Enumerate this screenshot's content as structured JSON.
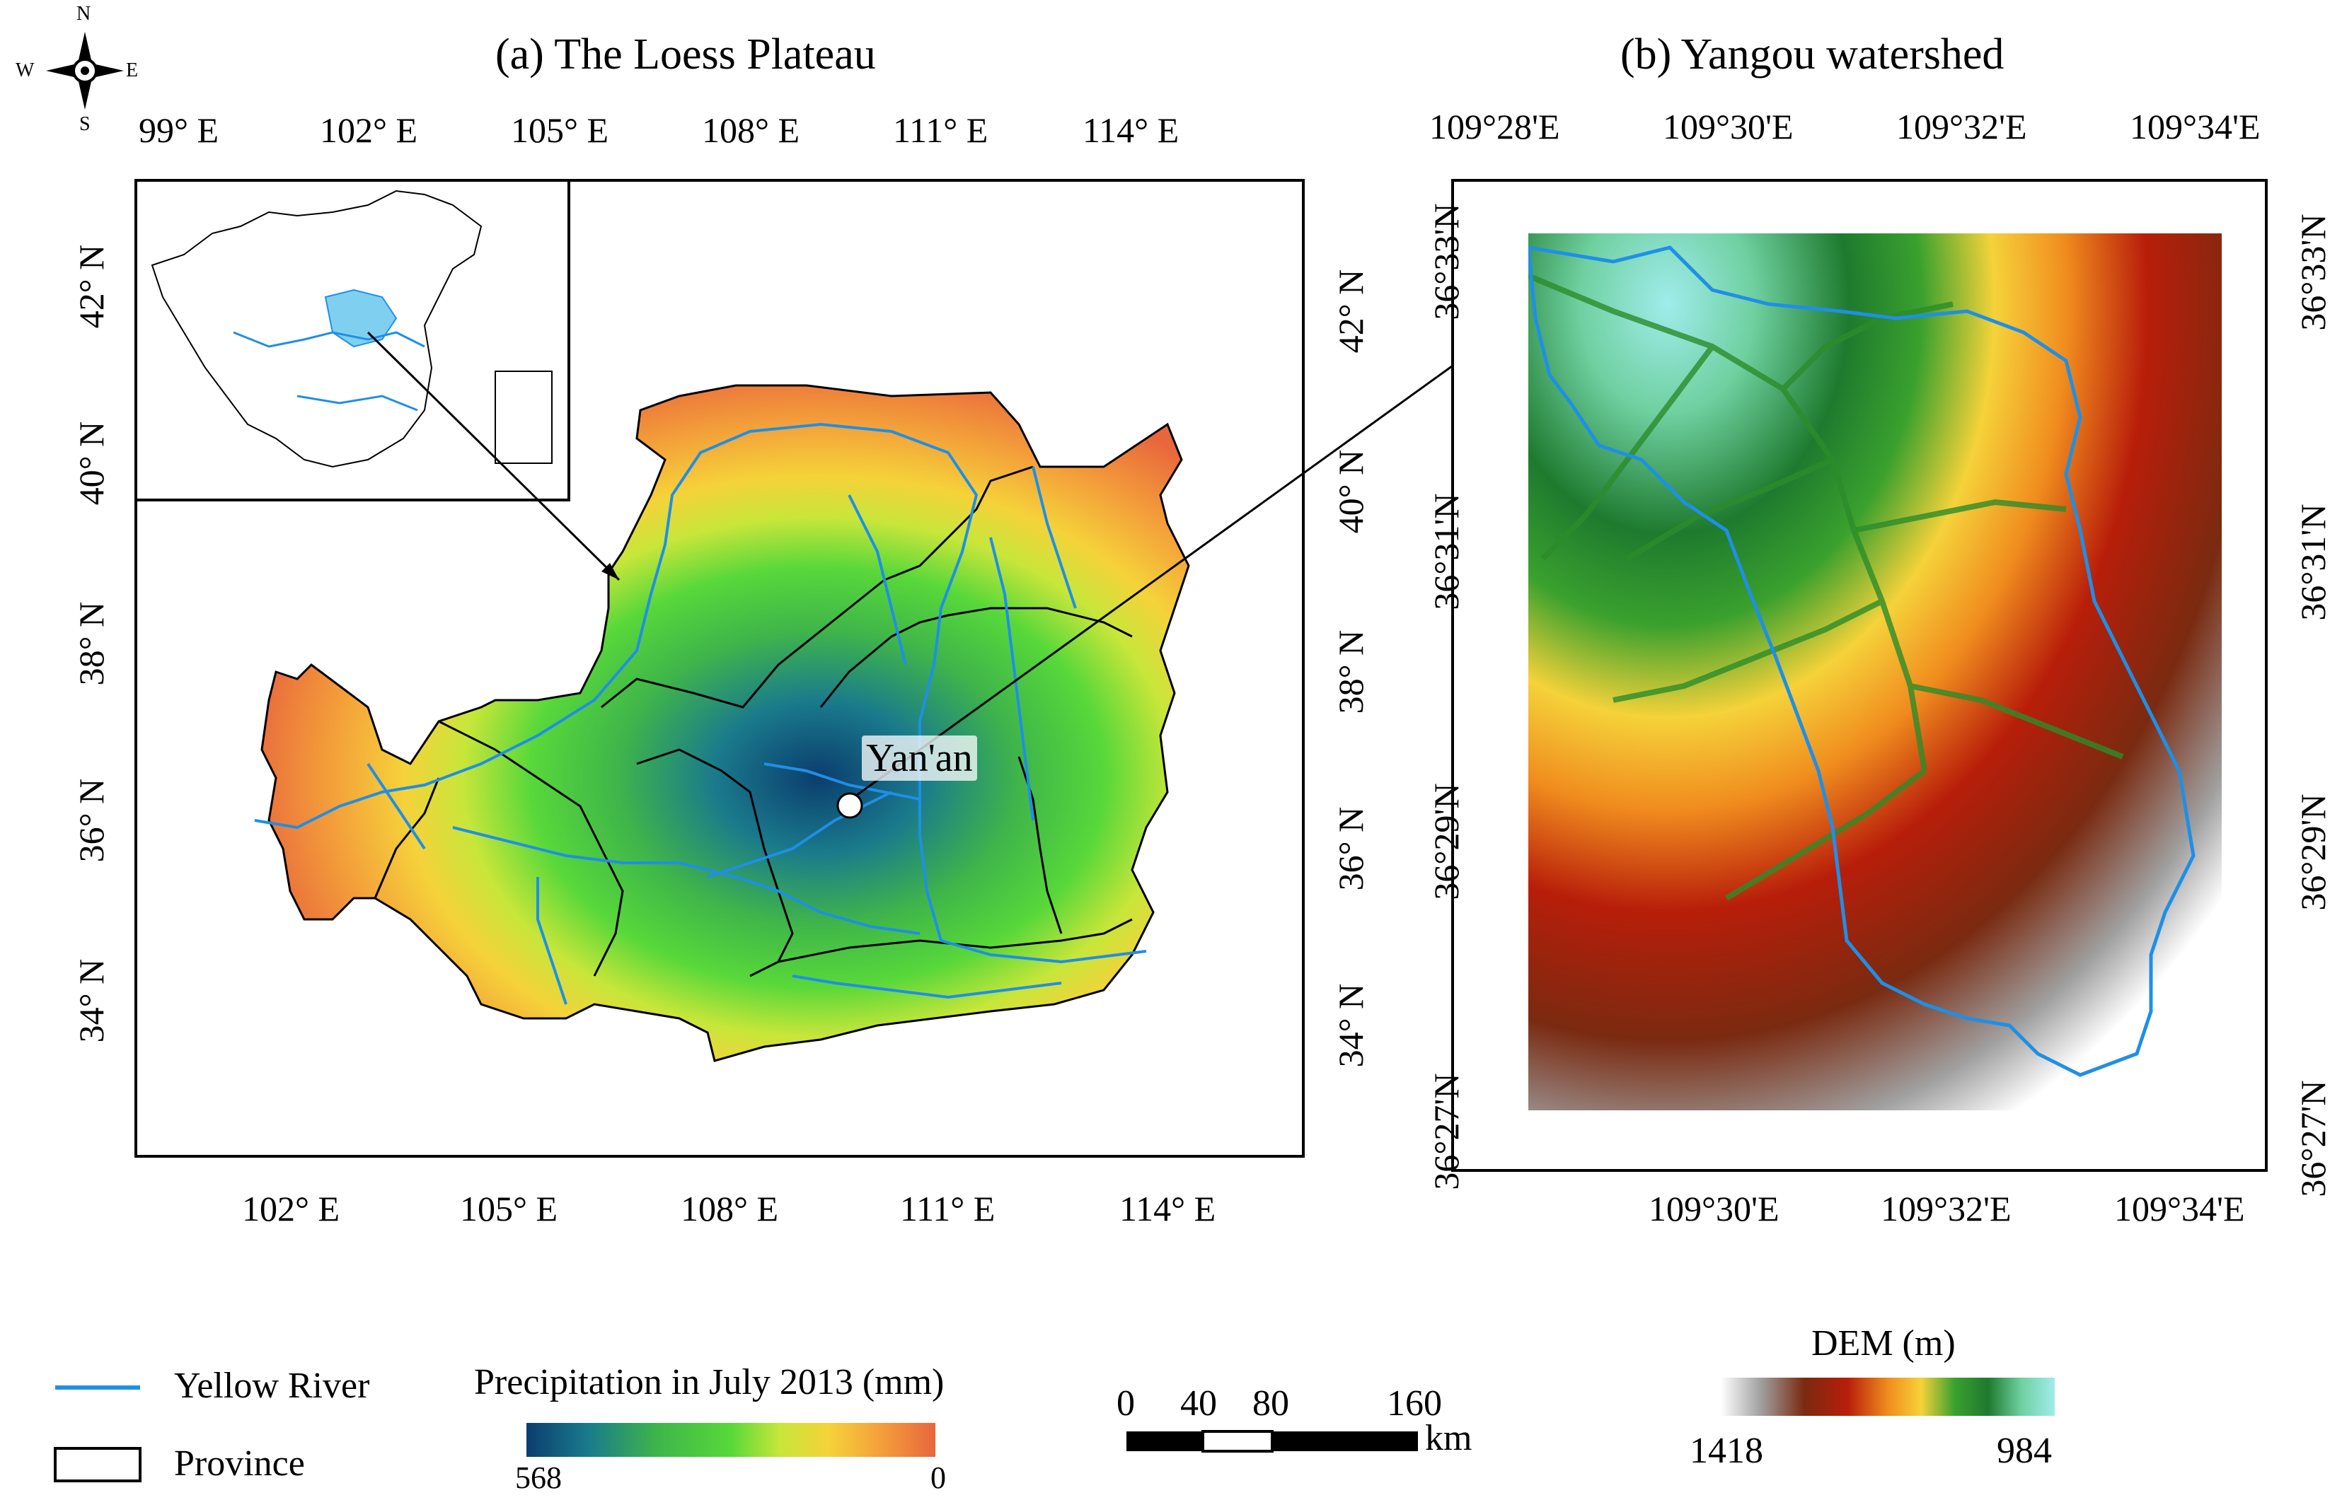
{
  "compass": {
    "n": "N",
    "s": "S",
    "e": "E",
    "w": "W"
  },
  "panel_a": {
    "title": "(a) The Loess Plateau",
    "top_ticks": [
      "99° E",
      "102° E",
      "105° E",
      "108° E",
      "111° E",
      "114° E"
    ],
    "bottom_ticks": [
      "102° E",
      "105° E",
      "108° E",
      "111° E",
      "114° E"
    ],
    "left_ticks": [
      "42° N",
      "40° N",
      "38° N",
      "36° N",
      "34° N"
    ],
    "right_ticks": [
      "42° N",
      "40° N",
      "38° N",
      "36° N",
      "34° N"
    ],
    "city_label": "Yan'an"
  },
  "panel_b": {
    "title": "(b) Yangou watershed",
    "top_ticks": [
      "109°28'E",
      "109°30'E",
      "109°32'E",
      "109°34'E"
    ],
    "bottom_ticks": [
      "109°30'E",
      "109°32'E",
      "109°34'E"
    ],
    "left_ticks": [
      "36°33'N",
      "36°31'N",
      "36°29'N",
      "36°27'N"
    ],
    "right_ticks": [
      "36°33'N",
      "36°31'N",
      "36°29'N",
      "36°27'N"
    ]
  },
  "legend": {
    "river_label": "Yellow River",
    "province_label": "Province",
    "precip_title": "Precipitation in July 2013  (mm)",
    "precip_min": "568",
    "precip_max": "0",
    "scale_values": [
      "0",
      "40",
      "80",
      "160"
    ],
    "scale_unit": "km",
    "dem_title": "DEM (m)",
    "dem_high": "1418",
    "dem_low": "984"
  },
  "colors": {
    "river": "#1f8fe6",
    "precip_gradient": [
      "#0b3d6e",
      "#1a7a8c",
      "#3fb54a",
      "#58d83a",
      "#c8e63a",
      "#f5d23a",
      "#f4a23a",
      "#e8663c"
    ],
    "dem_gradient": [
      "#ffffff",
      "#a0a0a0",
      "#7a2a10",
      "#b81e0a",
      "#f08c1e",
      "#f5d23a",
      "#3aa12e",
      "#1e7a2e",
      "#6fd0a0",
      "#a0ecec"
    ]
  }
}
